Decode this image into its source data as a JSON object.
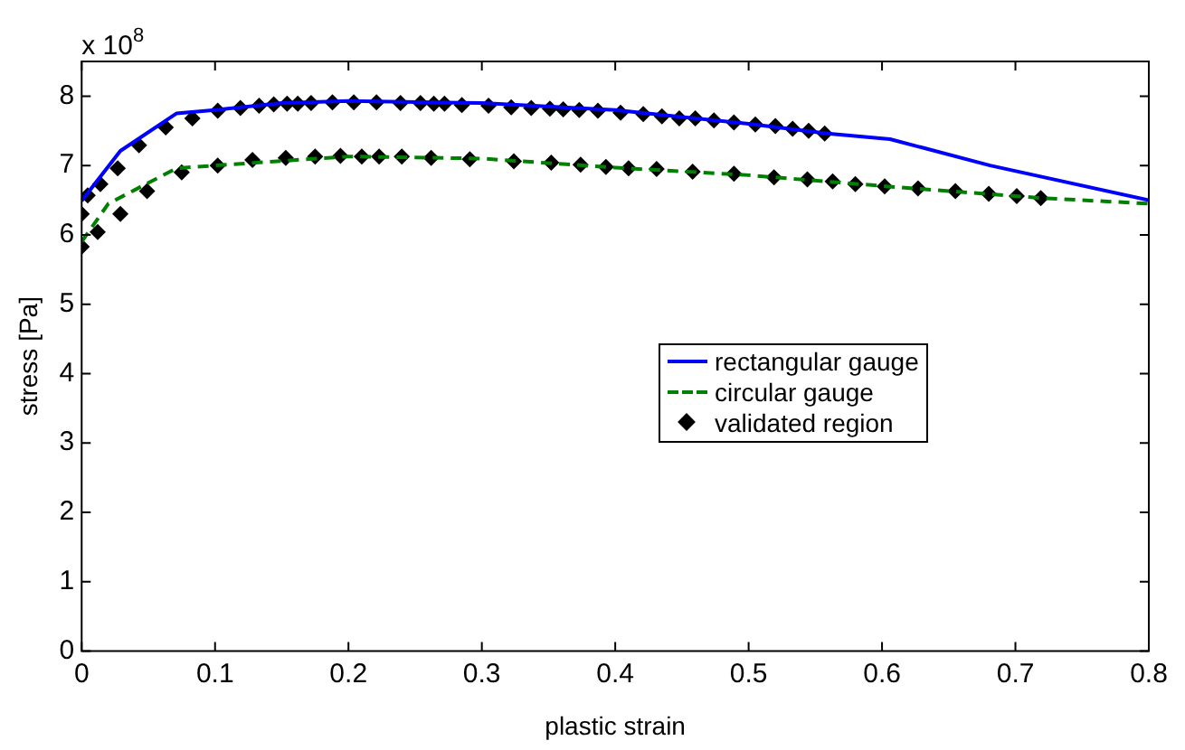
{
  "chart_data": {
    "type": "line",
    "xlabel": "plastic strain",
    "ylabel": "stress [Pa]",
    "annotations": [
      "x 10$^{8}$"
    ],
    "xlim": [
      0,
      0.8
    ],
    "xticks": [
      0,
      0.1,
      0.2,
      0.3,
      0.4,
      0.5,
      0.6,
      0.7,
      0.8
    ],
    "ylim": [
      0,
      8.5
    ],
    "yticks": [
      0,
      1,
      2,
      3,
      4,
      5,
      6,
      7,
      8
    ],
    "grid": false,
    "legend": "right",
    "series": [
      {
        "name": "rectangular gauge",
        "color": "#0000ff",
        "line_style": "solid",
        "marker": "none",
        "x": [
          0,
          0.029,
          0.071,
          0.1,
          0.15,
          0.2,
          0.3,
          0.4,
          0.5,
          0.559,
          0.606,
          0.681,
          0.8
        ],
        "values": [
          6.49,
          7.21,
          7.75,
          7.8,
          7.9,
          7.93,
          7.9,
          7.8,
          7.6,
          7.46,
          7.38,
          7.0,
          6.5
        ]
      },
      {
        "name": "circular gauge",
        "color": "#008000",
        "line_style": "dashed",
        "marker": "none",
        "x": [
          0,
          0.02,
          0.071,
          0.1,
          0.2,
          0.3,
          0.4,
          0.5,
          0.603,
          0.72,
          0.8
        ],
        "values": [
          5.9,
          6.45,
          6.96,
          7.0,
          7.13,
          7.1,
          6.97,
          6.86,
          6.7,
          6.53,
          6.45
        ]
      },
      {
        "name": "validated region",
        "type": "scatter",
        "color": "#000000",
        "marker": "diamond",
        "x": [
          0,
          0.0045,
          0.014,
          0.027,
          0.043,
          0.063,
          0.083,
          0.102,
          0.119,
          0.133,
          0.144,
          0.154,
          0.162,
          0.172,
          0.188,
          0.204,
          0.221,
          0.239,
          0.254,
          0.264,
          0.272,
          0.285,
          0.305,
          0.322,
          0.337,
          0.351,
          0.361,
          0.373,
          0.387,
          0.404,
          0.421,
          0.435,
          0.448,
          0.46,
          0.474,
          0.489,
          0.505,
          0.52,
          0.533,
          0.545,
          0.557,
          0,
          0.012,
          0.029,
          0.049,
          0.075,
          0.102,
          0.128,
          0.153,
          0.175,
          0.194,
          0.21,
          0.223,
          0.24,
          0.262,
          0.291,
          0.324,
          0.352,
          0.374,
          0.393,
          0.41,
          0.431,
          0.458,
          0.489,
          0.519,
          0.544,
          0.563,
          0.58,
          0.602,
          0.627,
          0.655,
          0.68,
          0.701,
          0.719
        ],
        "values": [
          6.3,
          6.57,
          6.73,
          6.96,
          7.29,
          7.55,
          7.68,
          7.79,
          7.83,
          7.86,
          7.88,
          7.89,
          7.89,
          7.9,
          7.91,
          7.91,
          7.91,
          7.9,
          7.9,
          7.89,
          7.89,
          7.87,
          7.86,
          7.84,
          7.83,
          7.82,
          7.81,
          7.8,
          7.79,
          7.76,
          7.74,
          7.71,
          7.68,
          7.68,
          7.65,
          7.62,
          7.59,
          7.57,
          7.53,
          7.5,
          7.46,
          5.83,
          6.04,
          6.3,
          6.63,
          6.9,
          7.0,
          7.08,
          7.11,
          7.13,
          7.14,
          7.13,
          7.13,
          7.13,
          7.11,
          7.09,
          7.06,
          7.04,
          7.01,
          6.98,
          6.96,
          6.95,
          6.91,
          6.88,
          6.83,
          6.8,
          6.77,
          6.73,
          6.7,
          6.67,
          6.63,
          6.59,
          6.56,
          6.53
        ]
      }
    ]
  }
}
